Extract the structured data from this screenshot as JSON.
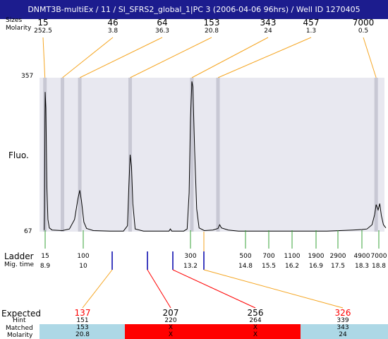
{
  "title": "DNMT3B-multiEx / 11 / SI_SFRS2_global_1|PC 3 (2006-04-06 96hrs) / Well ID 1270405",
  "header": {
    "row1_label": "Sizes",
    "row2_label": "Molarity"
  },
  "y_axis": {
    "label": "Fluo.",
    "max_label": "357",
    "min_label": "67"
  },
  "ladder": {
    "label": "Ladder",
    "migtime_label": "Mig. time"
  },
  "expected": {
    "label": "Expected",
    "hint_label": "Hint",
    "matched_label": "Matched",
    "molarity_label": "Molarity"
  },
  "colors": {
    "title_bg": "#1c1c8e",
    "connector": "#f5a623",
    "ladder_tick": "#3aa33a",
    "expected_tick": "#0000aa",
    "matched_ok": "#add8e6",
    "matched_bad": "#ff0000",
    "plot_bg": "#e8e8f0",
    "marker_band": "#c8c8d4"
  },
  "chart_data": {
    "type": "line",
    "title": "",
    "ylabel": "Fluo.",
    "ylim": [
      67,
      357
    ],
    "peaks": [
      {
        "size": "15",
        "molarity": "252.5"
      },
      {
        "size": "46",
        "molarity": "3.8"
      },
      {
        "size": "64",
        "molarity": "36.3"
      },
      {
        "size": "153",
        "molarity": "20.8"
      },
      {
        "size": "343",
        "molarity": "24"
      },
      {
        "size": "457",
        "molarity": "1.3"
      },
      {
        "size": "7000",
        "molarity": "0.5"
      }
    ],
    "ladder": [
      {
        "size": "15",
        "migtime": "8.9"
      },
      {
        "size": "100",
        "migtime": "10"
      },
      {
        "size": "300",
        "migtime": "13.2"
      },
      {
        "size": "500",
        "migtime": "14.8"
      },
      {
        "size": "700",
        "migtime": "15.5"
      },
      {
        "size": "1100",
        "migtime": "16.2"
      },
      {
        "size": "1900",
        "migtime": "16.9"
      },
      {
        "size": "2900",
        "migtime": "17.5"
      },
      {
        "size": "4900",
        "migtime": "18.3"
      },
      {
        "size": "7000",
        "migtime": "18.8"
      }
    ],
    "expected": [
      {
        "expected": "137",
        "hint": "151",
        "matched": "153",
        "molarity": "20.8",
        "ok": true
      },
      {
        "expected": "207",
        "hint": "220",
        "matched": "X",
        "molarity": "X",
        "ok": false
      },
      {
        "expected": "256",
        "hint": "264",
        "matched": "X",
        "molarity": "X",
        "ok": false
      },
      {
        "expected": "326",
        "hint": "339",
        "matched": "343",
        "molarity": "24",
        "ok": true
      }
    ],
    "trace": [
      [
        8.82,
        70
      ],
      [
        8.85,
        110
      ],
      [
        8.88,
        280
      ],
      [
        8.9,
        330
      ],
      [
        8.92,
        300
      ],
      [
        8.95,
        150
      ],
      [
        8.98,
        90
      ],
      [
        9.02,
        74
      ],
      [
        9.1,
        70
      ],
      [
        9.4,
        69
      ],
      [
        9.6,
        72
      ],
      [
        9.75,
        90
      ],
      [
        9.85,
        130
      ],
      [
        9.9,
        145
      ],
      [
        9.95,
        125
      ],
      [
        10.02,
        85
      ],
      [
        10.1,
        73
      ],
      [
        10.3,
        69
      ],
      [
        10.8,
        68
      ],
      [
        11.2,
        68
      ],
      [
        11.32,
        78
      ],
      [
        11.36,
        150
      ],
      [
        11.4,
        212
      ],
      [
        11.44,
        190
      ],
      [
        11.48,
        120
      ],
      [
        11.55,
        72
      ],
      [
        11.8,
        68
      ],
      [
        12.2,
        68
      ],
      [
        12.56,
        68
      ],
      [
        12.6,
        72
      ],
      [
        12.64,
        68
      ],
      [
        13.0,
        68
      ],
      [
        13.1,
        72
      ],
      [
        13.16,
        140
      ],
      [
        13.2,
        280
      ],
      [
        13.24,
        350
      ],
      [
        13.27,
        340
      ],
      [
        13.32,
        220
      ],
      [
        13.38,
        110
      ],
      [
        13.45,
        74
      ],
      [
        13.6,
        69
      ],
      [
        13.85,
        70
      ],
      [
        14.0,
        73
      ],
      [
        14.05,
        80
      ],
      [
        14.1,
        74
      ],
      [
        14.3,
        70
      ],
      [
        14.6,
        68
      ],
      [
        15.2,
        68
      ],
      [
        16.2,
        68
      ],
      [
        17.2,
        68
      ],
      [
        18.0,
        70
      ],
      [
        18.3,
        71
      ],
      [
        18.45,
        72
      ],
      [
        18.6,
        80
      ],
      [
        18.68,
        100
      ],
      [
        18.72,
        118
      ],
      [
        18.78,
        108
      ],
      [
        18.83,
        120
      ],
      [
        18.88,
        98
      ],
      [
        18.95,
        80
      ],
      [
        19.03,
        74
      ]
    ],
    "grid": false
  }
}
